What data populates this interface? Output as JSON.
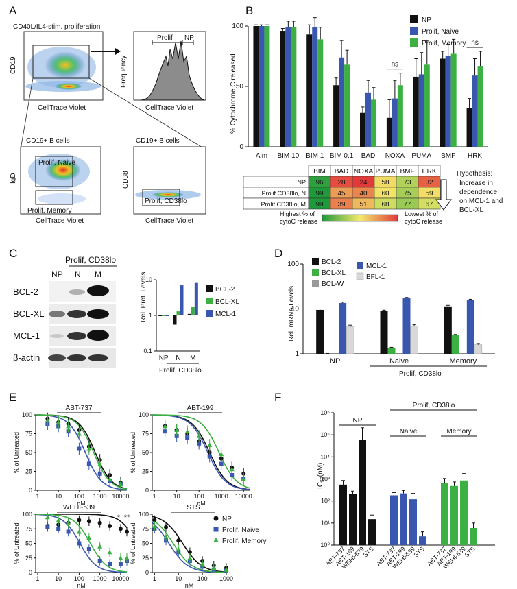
{
  "panel_letters": [
    "A",
    "B",
    "C",
    "D",
    "E",
    "F"
  ],
  "colors": {
    "np": "#111111",
    "naive": "#3a57b0",
    "memory": "#3cb043",
    "grey_hist": "#8c8c8c",
    "bfl": "#d8d8d8",
    "bclw": "#999999"
  },
  "panel_a": {
    "plot1_title": "CD40L/IL4-stim. proliferation",
    "plot1_ylabel": "CD19",
    "xlabel": "CellTrace Violet",
    "hist_ylabel": "Frequency",
    "hist_gate_prolif": "Prolif",
    "hist_gate_np": "NP",
    "plot3_title": "CD19+ B cells",
    "plot3_ylabel": "IgD",
    "plot3_gate_naive": "Prolif, Naive",
    "plot3_gate_memory": "Prolif, Memory",
    "plot4_title": "CD19+ B cells",
    "plot4_ylabel": "CD38",
    "plot4_gate": "Prolif, CD38lo"
  },
  "panel_b": {
    "chart_data": {
      "type": "bar",
      "title": "",
      "ylabel": "% Cytochrome C released",
      "ylim": [
        0,
        100
      ],
      "yticks": [
        0,
        50,
        100
      ],
      "categories": [
        "Alm",
        "BIM 10",
        "BIM 1",
        "BIM 0.1",
        "BAD",
        "NOXA",
        "PUMA",
        "BMF",
        "HRK"
      ],
      "series": [
        {
          "name": "NP",
          "values": [
            100,
            96,
            93,
            51,
            28,
            24,
            58,
            73,
            32
          ],
          "errors": [
            1,
            2,
            8,
            6,
            5,
            15,
            15,
            6,
            8
          ]
        },
        {
          "name": "Prolif, Naive",
          "values": [
            100,
            99,
            99,
            74,
            45,
            40,
            60,
            75,
            59
          ],
          "errors": [
            1,
            5,
            8,
            14,
            10,
            15,
            18,
            10,
            14
          ]
        },
        {
          "name": "Prolif, Memory",
          "values": [
            100,
            99,
            89,
            68,
            39,
            51,
            68,
            77,
            67
          ],
          "errors": [
            1,
            5,
            10,
            12,
            10,
            10,
            20,
            12,
            12
          ]
        }
      ],
      "annotations": [
        {
          "category": "NOXA",
          "text": "ns"
        },
        {
          "category": "HRK",
          "text": "ns"
        }
      ]
    },
    "heatmap": {
      "columns": [
        "BIM",
        "BAD",
        "NOXA",
        "PUMA",
        "BMF",
        "HRK"
      ],
      "rows": [
        {
          "label": "NP",
          "values": [
            96,
            28,
            24,
            58,
            73,
            32
          ]
        },
        {
          "label": "Prolif CD38lo, N",
          "values": [
            99,
            45,
            40,
            60,
            75,
            59
          ]
        },
        {
          "label": "Prolif CD38lo, M",
          "values": [
            99,
            39,
            51,
            68,
            77,
            67
          ]
        }
      ],
      "legend_high": "Highest % of cytoC release",
      "legend_low": "Lowest % of cytoC release"
    },
    "hypothesis_title": "Hypothesis:",
    "hypothesis_lines": [
      "Increase in",
      "dependence",
      "on MCL-1 and",
      "BCL-XL"
    ]
  },
  "panel_c": {
    "blot_header": "Prolif, CD38lo",
    "lane_labels": [
      "NP",
      "N",
      "M"
    ],
    "row_labels": [
      "BCL-2",
      "BCL-XL",
      "MCL-1",
      "β-actin"
    ],
    "chart_data": {
      "type": "bar",
      "ylabel": "Rel. Prot. Levels",
      "yscale": "log",
      "ylim": [
        0.1,
        10
      ],
      "ytick_labels": [
        "0.1",
        "1",
        "10"
      ],
      "categories": [
        "NP",
        "N",
        "M"
      ],
      "xgroup_label": "Prolif, CD38lo",
      "series": [
        {
          "name": "BCL-2",
          "values": [
            1.0,
            0.55,
            1.1
          ]
        },
        {
          "name": "BCL-XL",
          "values": [
            1.0,
            1.3,
            1.7
          ]
        },
        {
          "name": "MCL-1",
          "values": [
            1.0,
            7.0,
            8.5
          ]
        }
      ]
    }
  },
  "panel_d": {
    "chart_data": {
      "type": "bar",
      "ylabel": "Rel. mRNA Levels",
      "yscale": "log",
      "ylim": [
        1,
        100
      ],
      "ytick_labels": [
        "1",
        "10",
        "100"
      ],
      "categories": [
        "NP",
        "Naive",
        "Memory"
      ],
      "xgroup_label": "Prolif, CD38lo",
      "series": [
        {
          "name": "BCL-2",
          "values": [
            9.5,
            9.0,
            11.0
          ],
          "errors": [
            0.5,
            0.4,
            1.0
          ]
        },
        {
          "name": "BCL-XL",
          "values": [
            1.0,
            1.35,
            2.6
          ],
          "errors": [
            0.02,
            0.05,
            0.1
          ]
        },
        {
          "name": "BCL-W",
          "values": [
            1.0,
            1.0,
            1.0
          ],
          "errors": [
            0,
            0,
            0
          ]
        },
        {
          "name": "MCL-1",
          "values": [
            13.5,
            17.5,
            16.0
          ],
          "errors": [
            0.6,
            0.5,
            0.4
          ]
        },
        {
          "name": "BFL-1",
          "values": [
            4.0,
            4.2,
            1.6
          ],
          "errors": [
            0.35,
            0.3,
            0.1
          ]
        }
      ]
    }
  },
  "panel_e": {
    "chart_data": [
      {
        "type": "line",
        "title": "ABT-737",
        "xlabel": "nM",
        "ylabel": "% of Untreated",
        "xscale": "log",
        "xticks": [
          1,
          10,
          100,
          1000,
          10000
        ],
        "xtick_labels": [
          "1",
          "10",
          "100",
          "1000",
          "10000"
        ],
        "ylim": [
          0,
          100
        ],
        "yticks": [
          0,
          25,
          50,
          75,
          100
        ],
        "series": [
          {
            "name": "NP",
            "ic50": 600,
            "points": [
              [
                3,
                95
              ],
              [
                10,
                90
              ],
              [
                30,
                88
              ],
              [
                100,
                80
              ],
              [
                300,
                58
              ],
              [
                1000,
                40
              ],
              [
                3000,
                20
              ],
              [
                10000,
                10
              ]
            ]
          },
          {
            "name": "Prolif, Naive",
            "ic50": 200,
            "points": [
              [
                3,
                88
              ],
              [
                10,
                85
              ],
              [
                30,
                78
              ],
              [
                100,
                55
              ],
              [
                300,
                35
              ],
              [
                1000,
                22
              ],
              [
                3000,
                12
              ],
              [
                10000,
                8
              ]
            ]
          },
          {
            "name": "Prolif, Memory",
            "ic50": 500,
            "points": [
              [
                3,
                93
              ],
              [
                10,
                90
              ],
              [
                30,
                85
              ],
              [
                100,
                75
              ],
              [
                300,
                55
              ],
              [
                1000,
                35
              ],
              [
                3000,
                15
              ],
              [
                10000,
                8
              ]
            ]
          }
        ]
      },
      {
        "type": "line",
        "title": "ABT-199",
        "xlabel": "nM",
        "ylabel": "% of Untreated",
        "xscale": "log",
        "xticks": [
          1,
          10,
          100,
          1000,
          10000
        ],
        "xtick_labels": [
          "1",
          "10",
          "100",
          "1000",
          "10000"
        ],
        "ylim": [
          0,
          100
        ],
        "yticks": [
          0,
          25,
          50,
          75,
          100
        ],
        "series": [
          {
            "name": "NP",
            "ic50": 300,
            "points": [
              [
                3,
                85
              ],
              [
                10,
                80
              ],
              [
                30,
                75
              ],
              [
                100,
                65
              ],
              [
                300,
                50
              ],
              [
                1000,
                42
              ],
              [
                3000,
                30
              ],
              [
                10000,
                22
              ]
            ]
          },
          {
            "name": "Prolif, Naive",
            "ic50": 250,
            "points": [
              [
                3,
                78
              ],
              [
                10,
                72
              ],
              [
                30,
                70
              ],
              [
                100,
                62
              ],
              [
                300,
                45
              ],
              [
                1000,
                35
              ],
              [
                3000,
                20
              ],
              [
                10000,
                15
              ]
            ]
          },
          {
            "name": "Prolif, Memory",
            "ic50": 800,
            "points": [
              [
                3,
                85
              ],
              [
                10,
                80
              ],
              [
                30,
                78
              ],
              [
                100,
                72
              ],
              [
                300,
                60
              ],
              [
                1000,
                48
              ],
              [
                3000,
                28
              ],
              [
                10000,
                15
              ]
            ]
          }
        ]
      },
      {
        "type": "line",
        "title": "WEHI-539",
        "xlabel": "nM",
        "ylabel": "% of Untreated",
        "xscale": "log",
        "xticks": [
          1,
          10,
          100,
          1000,
          10000
        ],
        "xtick_labels": [
          "1",
          "10",
          "100",
          "1000",
          "10000"
        ],
        "ylim": [
          0,
          100
        ],
        "yticks": [
          0,
          25,
          50,
          75,
          100
        ],
        "annotations": [
          "*",
          "**"
        ],
        "series": [
          {
            "name": "NP",
            "ic50": 60000,
            "points": [
              [
                3,
                80
              ],
              [
                10,
                82
              ],
              [
                30,
                85
              ],
              [
                100,
                90
              ],
              [
                300,
                88
              ],
              [
                1000,
                85
              ],
              [
                3000,
                80
              ],
              [
                10000,
                75
              ],
              [
                20000,
                70
              ]
            ]
          },
          {
            "name": "Prolif, Naive",
            "ic50": 110,
            "points": [
              [
                3,
                78
              ],
              [
                10,
                75
              ],
              [
                30,
                70
              ],
              [
                100,
                50
              ],
              [
                300,
                40
              ],
              [
                1000,
                20
              ],
              [
                3000,
                15
              ],
              [
                10000,
                15
              ],
              [
                20000,
                20
              ]
            ]
          },
          {
            "name": "Prolif, Memory",
            "ic50": 350,
            "points": [
              [
                3,
                95
              ],
              [
                10,
                90
              ],
              [
                30,
                85
              ],
              [
                100,
                70
              ],
              [
                300,
                60
              ],
              [
                1000,
                45
              ],
              [
                3000,
                35
              ],
              [
                10000,
                25
              ],
              [
                20000,
                25
              ]
            ]
          }
        ]
      },
      {
        "type": "line",
        "title": "STS",
        "xlabel": "nM",
        "ylabel": "% of Untreated",
        "xscale": "log",
        "xticks": [
          1,
          10,
          100,
          1000
        ],
        "xtick_labels": [
          "1",
          "10",
          "100",
          "1000"
        ],
        "ylim": [
          0,
          100
        ],
        "yticks": [
          0,
          25,
          50,
          75,
          100
        ],
        "series": [
          {
            "name": "NP",
            "ic50": 15,
            "points": [
              [
                1,
                90
              ],
              [
                3,
                78
              ],
              [
                10,
                55
              ],
              [
                30,
                35
              ],
              [
                100,
                20
              ],
              [
                300,
                12
              ],
              [
                1000,
                8
              ]
            ]
          },
          {
            "name": "Prolif, Naive",
            "ic50": 4,
            "points": [
              [
                1,
                75
              ],
              [
                3,
                55
              ],
              [
                10,
                35
              ],
              [
                30,
                20
              ],
              [
                100,
                10
              ],
              [
                300,
                5
              ],
              [
                1000,
                3
              ]
            ]
          },
          {
            "name": "Prolif, Memory",
            "ic50": 6,
            "points": [
              [
                1,
                80
              ],
              [
                3,
                62
              ],
              [
                10,
                40
              ],
              [
                30,
                25
              ],
              [
                100,
                15
              ],
              [
                300,
                8
              ],
              [
                1000,
                5
              ]
            ]
          }
        ]
      }
    ],
    "legend": [
      "NP",
      "Prolif, Naive",
      "Prolif, Memory"
    ]
  },
  "panel_f": {
    "chart_data": {
      "type": "bar",
      "ylabel": "IC50(nM)",
      "yscale": "log",
      "ylim": [
        1,
        1000000
      ],
      "ytick_labels": [
        "10⁰",
        "10¹",
        "10²",
        "10³",
        "10⁴",
        "10⁵",
        "10⁶"
      ],
      "top_label": "Prolif, CD38lo",
      "groups": [
        {
          "name": "NP",
          "categories": [
            "ABT-737",
            "ABT-199",
            "WEHI-539",
            "STS"
          ],
          "values": [
            550,
            200,
            60000,
            15
          ],
          "errors": [
            300,
            80,
            150000,
            8
          ]
        },
        {
          "name": "Naive",
          "categories": [
            "ABT-737",
            "ABT-199",
            "WEHI-539",
            "STS"
          ],
          "values": [
            180,
            220,
            120,
            2.5
          ],
          "errors": [
            60,
            80,
            100,
            1.5
          ]
        },
        {
          "name": "Memory",
          "categories": [
            "ABT-737",
            "ABT-199",
            "WEHI-539",
            "STS"
          ],
          "values": [
            650,
            480,
            850,
            6
          ],
          "errors": [
            400,
            250,
            900,
            4
          ]
        }
      ]
    }
  }
}
